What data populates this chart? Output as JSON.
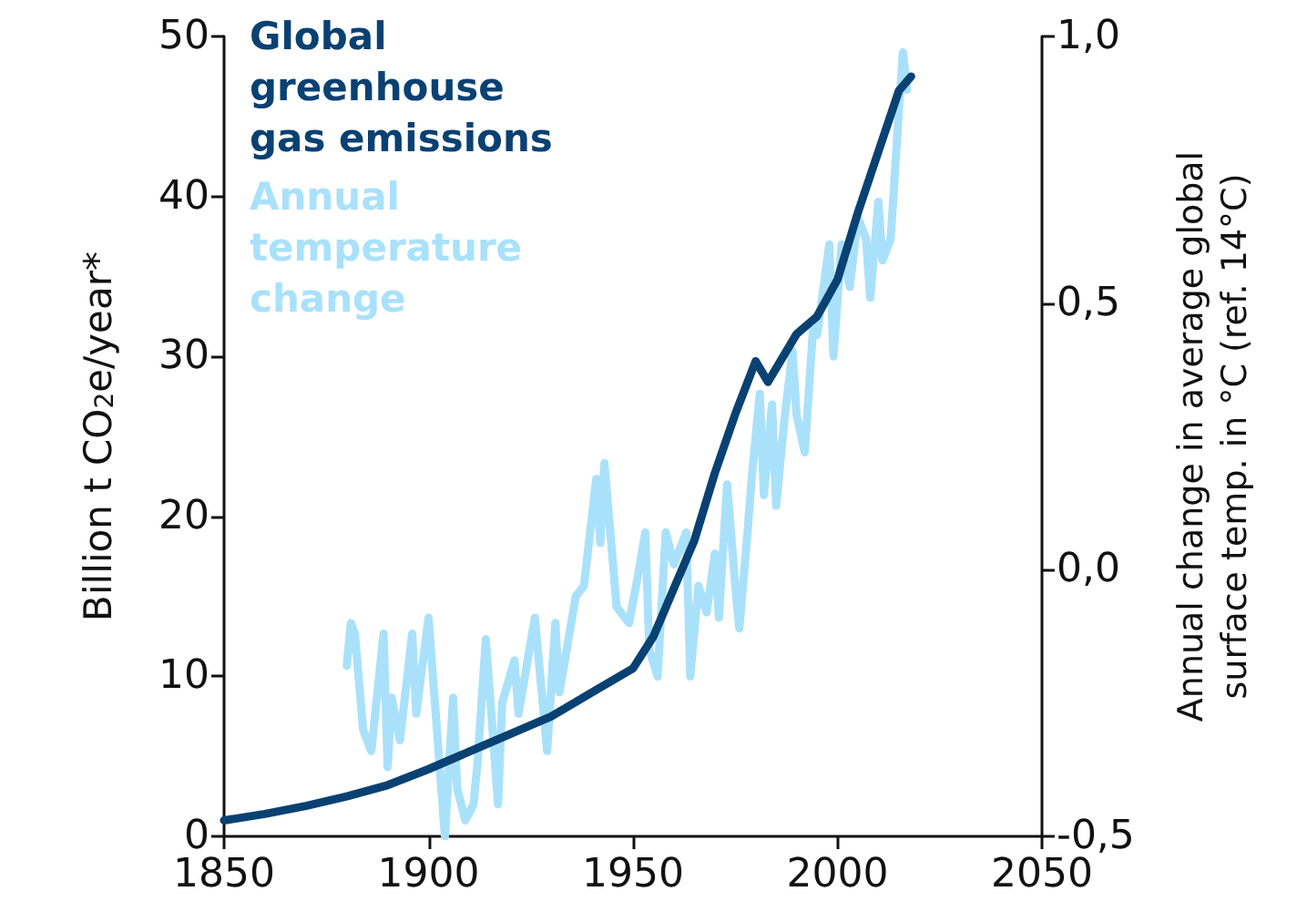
{
  "chart_data": {
    "type": "line",
    "xlabel": null,
    "ylabel": "Billion t CO$_{2}$e/year*",
    "y2label": "Annual change in average global surface temp. in °C (ref. 14°C)",
    "xlim": [
      1850,
      2050
    ],
    "xticks": [
      1850,
      1900,
      1950,
      2000,
      2050
    ],
    "ylim": [
      0,
      50
    ],
    "yticks": [
      0,
      10,
      20,
      30,
      40,
      50
    ],
    "y2lim": [
      -0.5,
      1.0
    ],
    "y2ticks": [
      {
        "value": -0.5,
        "label": "-0,5"
      },
      {
        "value": 0,
        "label": "0,0"
      },
      {
        "value": 0.5,
        "label": "0,5"
      },
      {
        "value": 1.0,
        "label": "1,0"
      }
    ],
    "grid": false,
    "legend": "top left",
    "marker": "none",
    "line_style": "solid",
    "series": [
      {
        "name": "Global greenhouse gas emissions",
        "color": "#0a4173",
        "x": [
          1850,
          1860,
          1870,
          1880,
          1890,
          1900,
          1910,
          1920,
          1930,
          1940,
          1950,
          1955,
          1960,
          1965,
          1970,
          1975,
          1980,
          1983,
          1990,
          1995,
          2000,
          2005,
          2010,
          2015,
          2018
        ],
        "values": [
          1,
          1.4,
          1.9,
          2.5,
          3.2,
          4.2,
          5.3,
          6.4,
          7.5,
          9,
          10.5,
          12.5,
          15.5,
          18.5,
          22.7,
          26.4,
          29.7,
          28.4,
          31.4,
          32.5,
          34.8,
          39,
          42.8,
          46.6,
          47.5
        ]
      },
      {
        "name": "Annual temperature change",
        "color": "#a9e1fb",
        "axis": "y2",
        "x": [
          1880,
          1881,
          1882,
          1884,
          1886,
          1889,
          1890,
          1891,
          1893,
          1896,
          1897,
          1900,
          1904,
          1906,
          1907,
          1909,
          1911,
          1912,
          1914,
          1917,
          1918,
          1921,
          1922,
          1926,
          1929,
          1931,
          1932,
          1934,
          1936,
          1938,
          1941,
          1942,
          1943,
          1946,
          1948,
          1949,
          1951,
          1953,
          1954,
          1956,
          1958,
          1960,
          1962,
          1963,
          1964,
          1966,
          1968,
          1970,
          1971,
          1973,
          1975,
          1976,
          1978,
          1979,
          1981,
          1982,
          1984,
          1985,
          1987,
          1989,
          1990,
          1992,
          1994,
          1995,
          1998,
          1999,
          2001,
          2003,
          2005,
          2007,
          2008,
          2010,
          2011,
          2013,
          2015,
          2016,
          2017
        ],
        "values": [
          -0.18,
          -0.1,
          -0.12,
          -0.3,
          -0.34,
          -0.12,
          -0.37,
          -0.24,
          -0.32,
          -0.12,
          -0.27,
          -0.09,
          -0.5,
          -0.24,
          -0.41,
          -0.47,
          -0.44,
          -0.36,
          -0.13,
          -0.44,
          -0.25,
          -0.17,
          -0.27,
          -0.09,
          -0.34,
          -0.1,
          -0.23,
          -0.14,
          -0.05,
          -0.03,
          0.17,
          0.05,
          0.2,
          -0.07,
          -0.09,
          -0.1,
          -0.02,
          0.07,
          -0.15,
          -0.2,
          0.07,
          0.01,
          0.05,
          0.07,
          -0.2,
          -0.03,
          -0.08,
          0.03,
          -0.09,
          0.16,
          -0.03,
          -0.11,
          0.07,
          0.17,
          0.33,
          0.14,
          0.31,
          0.12,
          0.28,
          0.41,
          0.29,
          0.22,
          0.45,
          0.44,
          0.61,
          0.4,
          0.61,
          0.53,
          0.66,
          0.62,
          0.51,
          0.69,
          0.58,
          0.62,
          0.86,
          0.97,
          0.9
        ]
      }
    ]
  }
}
